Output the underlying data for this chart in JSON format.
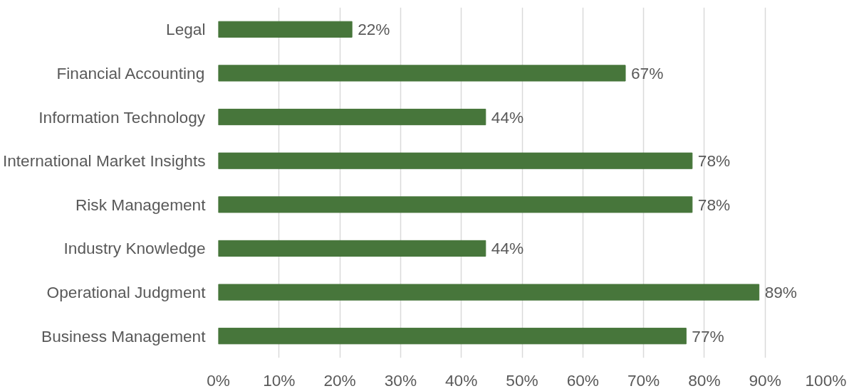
{
  "chart_data": {
    "type": "bar",
    "orientation": "horizontal",
    "categories": [
      "Legal",
      "Financial Accounting",
      "Information Technology",
      "International Market Insights",
      "Risk Management",
      "Industry Knowledge",
      "Operational Judgment",
      "Business Management"
    ],
    "values": [
      22,
      67,
      44,
      78,
      78,
      44,
      89,
      77
    ],
    "value_labels": [
      "22%",
      "67%",
      "44%",
      "78%",
      "78%",
      "44%",
      "89%",
      "77%"
    ],
    "color": "#47763b",
    "xlim": [
      0,
      100
    ],
    "xticks": [
      {
        "value": 0,
        "label": "0%"
      },
      {
        "value": 10,
        "label": "10%"
      },
      {
        "value": 20,
        "label": "20%"
      },
      {
        "value": 30,
        "label": "30%"
      },
      {
        "value": 40,
        "label": "40%"
      },
      {
        "value": 50,
        "label": "50%"
      },
      {
        "value": 60,
        "label": "60%"
      },
      {
        "value": 70,
        "label": "70%"
      },
      {
        "value": 80,
        "label": "80%"
      },
      {
        "value": 90,
        "label": "90%"
      },
      {
        "value": 100,
        "label": "100%"
      }
    ],
    "grid": "x"
  }
}
